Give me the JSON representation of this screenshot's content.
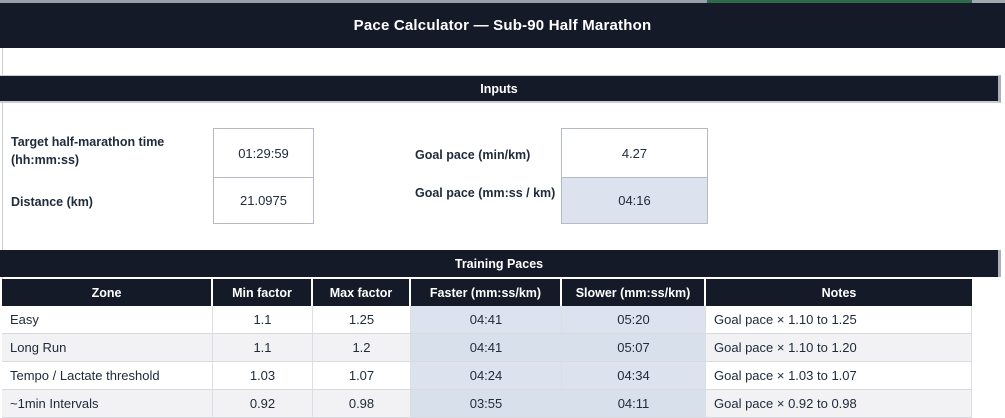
{
  "title": "Pace Calculator — Sub-90 Half Marathon",
  "sections": {
    "inputs": "Inputs",
    "training": "Training Paces"
  },
  "inputs": [
    {
      "label": "Target half-marathon time (hh:mm:ss)",
      "value": "01:29:59"
    },
    {
      "label": "Distance (km)",
      "value": "21.0975"
    },
    {
      "label": "Goal pace (min/km)",
      "value": "4.27"
    },
    {
      "label": "Goal pace (mm:ss / km)",
      "value": "04:16"
    }
  ],
  "table": {
    "headers": [
      "Zone",
      "Min factor",
      "Max factor",
      "Faster (mm:ss/km)",
      "Slower (mm:ss/km)",
      "Notes"
    ],
    "rows": [
      {
        "zone": "Easy",
        "min": "1.1",
        "max": "1.25",
        "faster": "04:41",
        "slower": "05:20",
        "notes": "Goal pace × 1.10 to 1.25"
      },
      {
        "zone": "Long Run",
        "min": "1.1",
        "max": "1.2",
        "faster": "04:41",
        "slower": "05:07",
        "notes": "Goal pace × 1.10 to 1.20"
      },
      {
        "zone": "Tempo / Lactate threshold",
        "min": "1.03",
        "max": "1.07",
        "faster": "04:24",
        "slower": "04:34",
        "notes": "Goal pace × 1.03 to 1.07"
      },
      {
        "zone": "~1min Intervals",
        "min": "0.92",
        "max": "0.98",
        "faster": "03:55",
        "slower": "04:11",
        "notes": "Goal pace × 0.92 to 0.98"
      }
    ]
  },
  "colors": {
    "header_navy": "#141a28",
    "highlight_blue": "#dce3ee",
    "alt_row_gray": "#f2f2f4",
    "selection_green": "#2d6b4b"
  }
}
